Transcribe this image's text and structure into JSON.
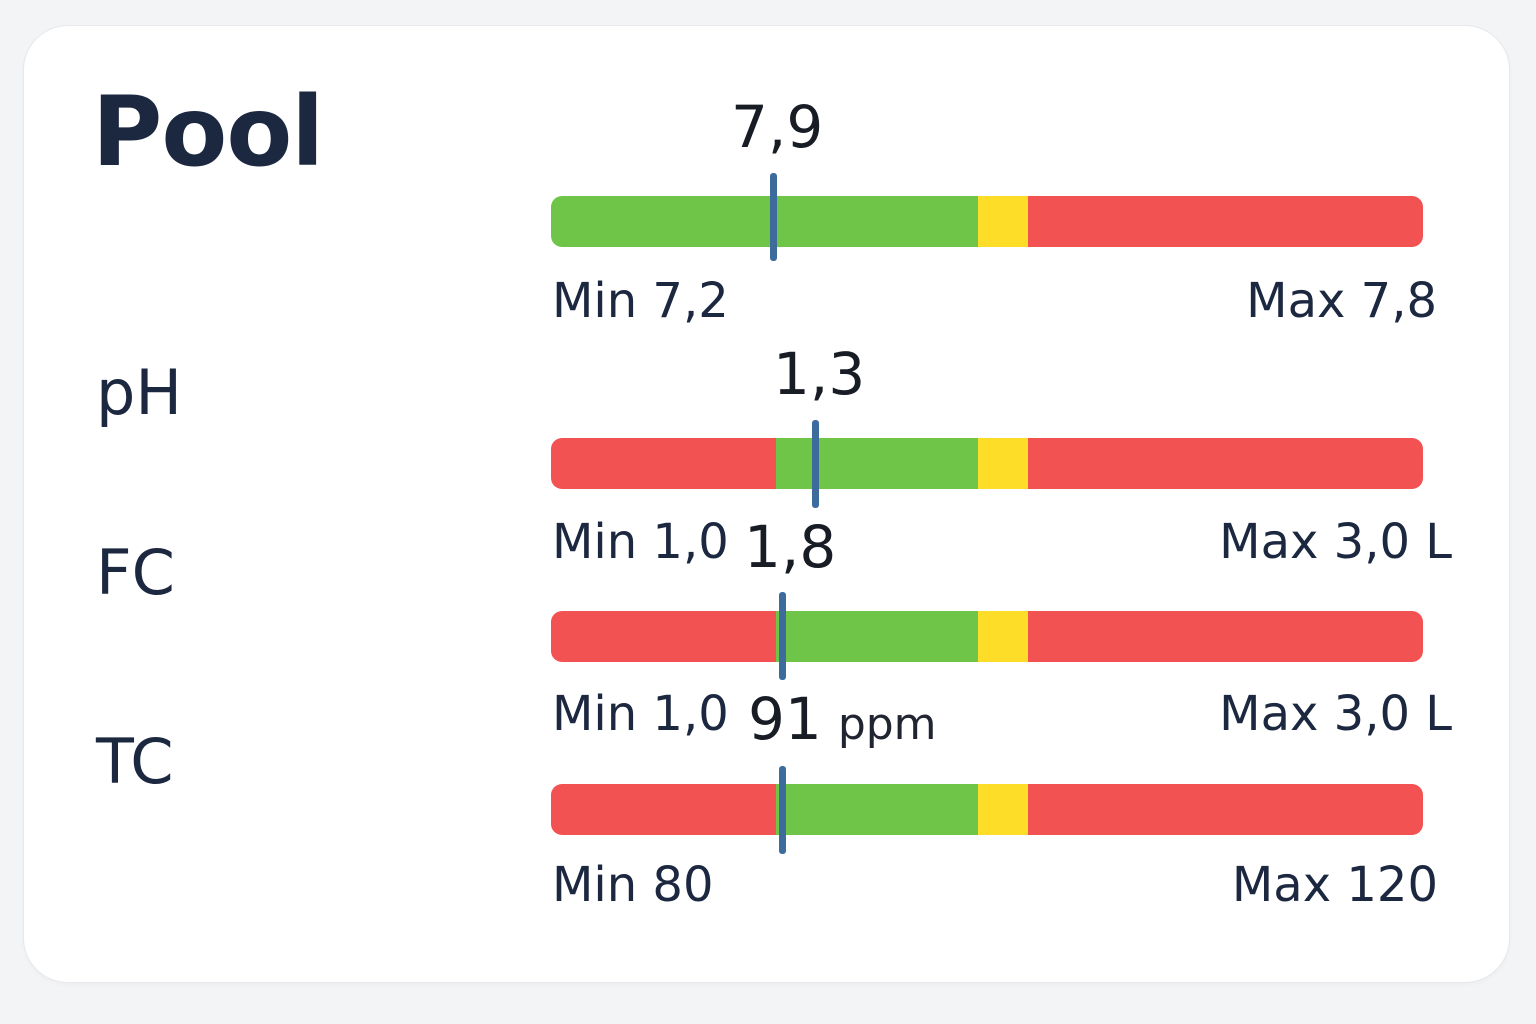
{
  "title": "Pool",
  "colors": {
    "green": "#6ec548",
    "yellow": "#fddd27",
    "red": "#f25252",
    "marker": "#3d6c9c"
  },
  "rows": [
    {
      "label": "",
      "value": "7,9",
      "unit": "",
      "min_label": "Min 7,2",
      "max_label": "Max 7,8",
      "zones": [
        {
          "color": "green",
          "span": 0.49
        },
        {
          "color": "yellow",
          "span": 0.057
        },
        {
          "color": "red",
          "span": 0.453
        }
      ],
      "marker_position": 0.255
    },
    {
      "label": "pH",
      "value": "1,3",
      "unit": "",
      "min_label": "Min 1,0",
      "max_label": "Max 3,0 L",
      "zones": [
        {
          "color": "red",
          "span": 0.258
        },
        {
          "color": "green",
          "span": 0.232
        },
        {
          "color": "yellow",
          "span": 0.057
        },
        {
          "color": "red",
          "span": 0.453
        }
      ],
      "marker_position": 0.303
    },
    {
      "label": "FC",
      "value": "1,8",
      "unit": "",
      "min_label": "Min 1,0",
      "max_label": "Max 3,0 L",
      "zones": [
        {
          "color": "red",
          "span": 0.258
        },
        {
          "color": "green",
          "span": 0.232
        },
        {
          "color": "yellow",
          "span": 0.057
        },
        {
          "color": "red",
          "span": 0.453
        }
      ],
      "marker_position": 0.265
    },
    {
      "label": "TC",
      "value": "91",
      "unit": "ppm",
      "min_label": "Min 80",
      "max_label": "Max 120",
      "zones": [
        {
          "color": "red",
          "span": 0.258
        },
        {
          "color": "green",
          "span": 0.232
        },
        {
          "color": "yellow",
          "span": 0.057
        },
        {
          "color": "red",
          "span": 0.453
        }
      ],
      "marker_position": 0.265
    }
  ]
}
